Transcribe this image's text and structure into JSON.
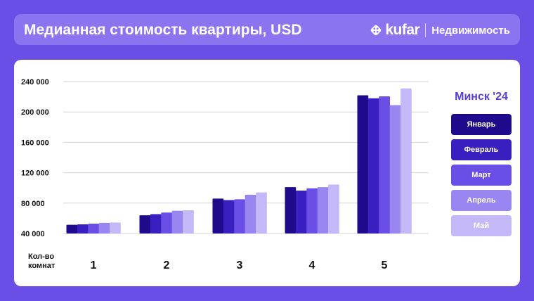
{
  "header": {
    "title": "Медианная стоимость квартиры, USD",
    "brand_name": "kufar",
    "brand_section": "Недвижимость"
  },
  "legend_title": "Минск '24",
  "chart_data": {
    "type": "bar",
    "title": "Медианная стоимость квартиры, USD",
    "xlabel": "Кол-во комнат",
    "ylabel": "",
    "xlabel_lines": [
      "Кол-во",
      "комнат"
    ],
    "categories": [
      "1",
      "2",
      "3",
      "4",
      "5"
    ],
    "ylim": [
      40000,
      240000
    ],
    "yticks": [
      40000,
      80000,
      120000,
      160000,
      200000,
      240000
    ],
    "ytick_labels": [
      "40 000",
      "80 000",
      "120 000",
      "160 000",
      "200 000",
      "240 000"
    ],
    "grid": true,
    "legend_position": "right",
    "series": [
      {
        "name": "Январь",
        "color": "#1F0A8C",
        "values": [
          51500,
          64000,
          86000,
          101000,
          222000
        ]
      },
      {
        "name": "Февраль",
        "color": "#3A1FC0",
        "values": [
          52000,
          65500,
          84000,
          96500,
          218000
        ]
      },
      {
        "name": "Март",
        "color": "#6B4EE6",
        "values": [
          53000,
          67500,
          85000,
          99500,
          220500
        ]
      },
      {
        "name": "Апрель",
        "color": "#9A86F0",
        "values": [
          54000,
          70000,
          91000,
          101000,
          209000
        ]
      },
      {
        "name": "Май",
        "color": "#C4B8F8",
        "values": [
          54500,
          70500,
          94000,
          104500,
          231000
        ]
      }
    ]
  }
}
